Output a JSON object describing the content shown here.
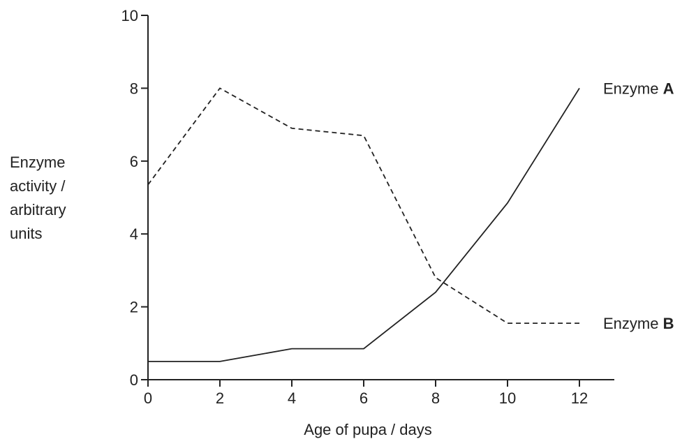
{
  "chart_data": {
    "type": "line",
    "xlabel": "Age of pupa / days",
    "ylabel_lines": [
      "Enzyme",
      "activity /",
      "arbitrary",
      "units"
    ],
    "xlim": [
      0,
      13
    ],
    "ylim": [
      0,
      10
    ],
    "x_ticks": [
      0,
      2,
      4,
      6,
      8,
      10,
      12
    ],
    "y_ticks": [
      0,
      2,
      4,
      6,
      8,
      10
    ],
    "grid": false,
    "legend": "inline-right",
    "series": [
      {
        "label_prefix": "Enzyme ",
        "label_bold": "A",
        "style": "solid",
        "color": "#222222",
        "x": [
          0,
          2,
          4,
          6,
          8,
          10,
          12
        ],
        "y": [
          0.5,
          0.5,
          0.85,
          0.85,
          2.4,
          4.85,
          8.0
        ]
      },
      {
        "label_prefix": "Enzyme ",
        "label_bold": "B",
        "style": "dashed",
        "color": "#222222",
        "x": [
          0,
          2,
          4,
          6,
          8,
          10,
          12
        ],
        "y": [
          5.35,
          8.0,
          6.9,
          6.7,
          2.8,
          1.55,
          1.55
        ]
      }
    ]
  }
}
